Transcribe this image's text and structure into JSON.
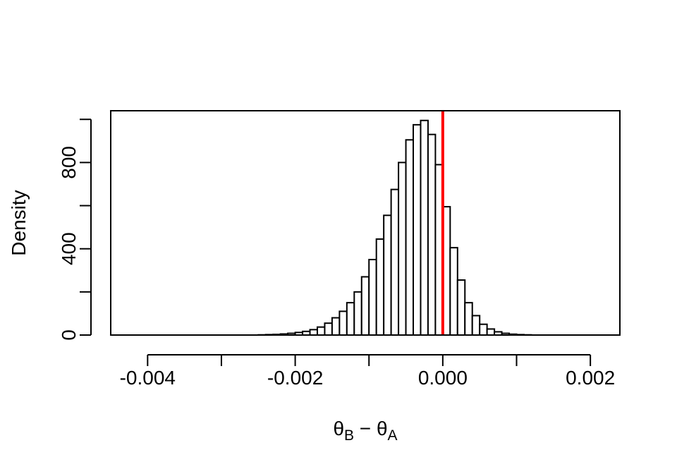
{
  "chart_data": {
    "type": "bar",
    "title": "",
    "xlabel": "θB − θA",
    "xlabel_parts": {
      "theta1": "θ",
      "sub1": "B",
      "minus": " − ",
      "theta2": "θ",
      "sub2": "A"
    },
    "ylabel": "Density",
    "xlim": [
      -0.0045,
      0.0024
    ],
    "ylim": [
      0,
      1040
    ],
    "x_ticks": [
      -0.004,
      -0.003,
      -0.002,
      -0.001,
      0.0,
      0.001,
      0.002
    ],
    "x_tick_labels": [
      "-0.004",
      "",
      "-0.002",
      "",
      "0.000",
      "",
      "0.002"
    ],
    "y_ticks": [
      0,
      200,
      400,
      600,
      800,
      1000
    ],
    "y_tick_labels": [
      "0",
      "",
      "400",
      "",
      "800",
      ""
    ],
    "bin_start": -0.0043,
    "bin_width": 0.0001,
    "values": [
      0,
      0,
      0,
      0,
      0,
      0,
      0,
      0,
      0,
      0,
      0,
      0,
      0,
      0,
      0,
      0,
      0,
      0,
      1,
      2,
      3,
      5,
      8,
      12,
      17,
      25,
      37,
      55,
      80,
      110,
      150,
      200,
      270,
      350,
      445,
      555,
      675,
      800,
      905,
      975,
      995,
      930,
      790,
      595,
      405,
      255,
      150,
      90,
      50,
      28,
      15,
      8,
      4,
      2,
      1,
      0,
      0,
      0,
      0,
      0,
      0,
      0,
      0,
      0,
      0
    ],
    "reference_line": {
      "x": 0.0,
      "color": "#ff0000"
    },
    "bar_color": "#ffffff",
    "edge_color": "#000000",
    "box": true,
    "grid": false
  }
}
